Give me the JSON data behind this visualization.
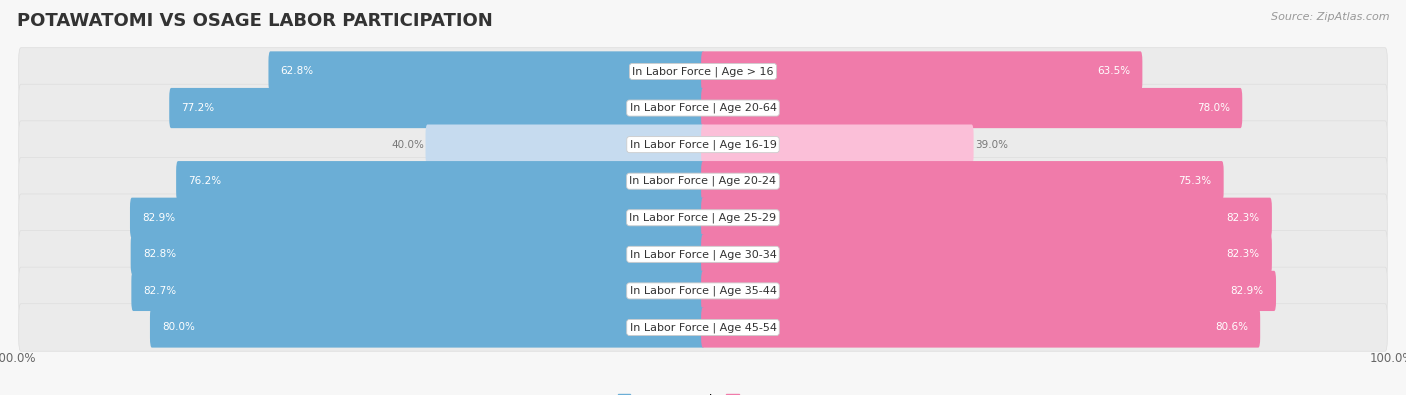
{
  "title": "POTAWATOMI VS OSAGE LABOR PARTICIPATION",
  "source": "Source: ZipAtlas.com",
  "categories": [
    "In Labor Force | Age > 16",
    "In Labor Force | Age 20-64",
    "In Labor Force | Age 16-19",
    "In Labor Force | Age 20-24",
    "In Labor Force | Age 25-29",
    "In Labor Force | Age 30-34",
    "In Labor Force | Age 35-44",
    "In Labor Force | Age 45-54"
  ],
  "potawatomi": [
    62.8,
    77.2,
    40.0,
    76.2,
    82.9,
    82.8,
    82.7,
    80.0
  ],
  "osage": [
    63.5,
    78.0,
    39.0,
    75.3,
    82.3,
    82.3,
    82.9,
    80.6
  ],
  "blue_color": "#6BAED6",
  "blue_light": "#C6DBEF",
  "pink_color": "#F07BAA",
  "pink_light": "#FBBFD8",
  "track_color": "#EBEBEB",
  "bg_color": "#F7F7F7",
  "row_white": "#FFFFFF",
  "row_gray": "#F0F0F0",
  "title_fontsize": 13,
  "label_fontsize": 8,
  "value_fontsize": 7.5,
  "bar_height": 0.55
}
